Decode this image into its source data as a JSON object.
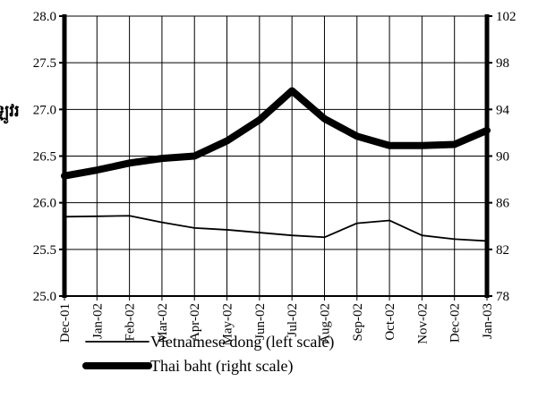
{
  "chart_data": {
    "type": "line",
    "ylabel": "ឡូវរ",
    "categories": [
      "Dec-01",
      "Jan-02",
      "Feb-02",
      "Mar-02",
      "Apr-02",
      "May-02",
      "Jun-02",
      "Jul-02",
      "Aug-02",
      "Sep-02",
      "Oct-02",
      "Nov-02",
      "Dec-02",
      "Jan-03"
    ],
    "series": [
      {
        "name": "Vietnamese dong (left scale)",
        "color": "#000000",
        "values": [
          25.85,
          25.855,
          25.86,
          25.79,
          25.73,
          25.71,
          25.68,
          25.65,
          25.63,
          25.78,
          25.81,
          25.65,
          25.61,
          25.59
        ]
      },
      {
        "name": "Thai baht (right scale)",
        "color": "#000000",
        "axis": "y2",
        "values": [
          88.3,
          88.8,
          89.4,
          89.8,
          90.0,
          91.3,
          93.1,
          95.6,
          93.2,
          91.7,
          90.9,
          90.9,
          91.0,
          92.2
        ]
      }
    ],
    "ylim": [
      25,
      28
    ],
    "yticks": [
      {
        "value": 25,
        "label": "25.0"
      },
      25.5,
      {
        "value": 26,
        "label": "26.0"
      },
      26.5,
      {
        "value": 27,
        "label": "27.0"
      },
      27.5,
      {
        "value": 28,
        "label": "28.0"
      }
    ],
    "y2lim": [
      78,
      102
    ],
    "y2ticks": [
      78,
      82,
      86,
      90,
      94,
      98,
      102
    ],
    "grid": true
  }
}
